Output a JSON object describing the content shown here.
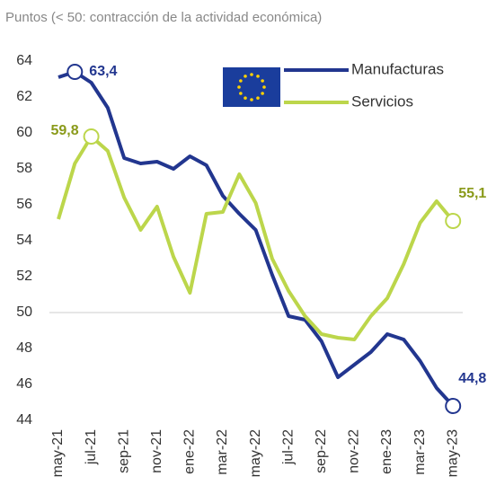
{
  "chart_data": {
    "type": "line",
    "subtitle": "Puntos (< 50: contracción de la actividad económica)",
    "categories": [
      "may-21",
      null,
      "jul-21",
      null,
      "sep-21",
      null,
      "nov-21",
      null,
      "ene-22",
      null,
      "mar-22",
      null,
      "may-22",
      null,
      "jul-22",
      null,
      "sep-22",
      null,
      "nov-22",
      null,
      "ene-23",
      null,
      "mar-23",
      null,
      "may-23"
    ],
    "series": [
      {
        "name": "Manufacturas",
        "color": "#22368f",
        "label_color": "#22368f",
        "values": [
          63.1,
          63.4,
          62.8,
          61.4,
          58.6,
          58.3,
          58.4,
          58.0,
          58.7,
          58.2,
          56.5,
          55.5,
          54.6,
          52.1,
          49.8,
          49.6,
          48.4,
          46.4,
          47.1,
          47.8,
          48.8,
          48.5,
          47.3,
          45.8,
          44.8
        ],
        "value_labels": [
          null,
          "63,4",
          null,
          null,
          null,
          null,
          null,
          null,
          null,
          null,
          null,
          null,
          null,
          null,
          null,
          null,
          null,
          null,
          null,
          null,
          null,
          null,
          null,
          null,
          "44,8"
        ]
      },
      {
        "name": "Servicios",
        "color": "#bcd64b",
        "label_color": "#8a9a1a",
        "values": [
          55.2,
          58.3,
          59.8,
          59.0,
          56.4,
          54.6,
          55.9,
          53.1,
          51.1,
          55.5,
          55.6,
          57.7,
          56.1,
          53.0,
          51.2,
          49.8,
          48.8,
          48.6,
          48.5,
          49.8,
          50.8,
          52.7,
          55.0,
          56.2,
          55.1
        ],
        "value_labels": [
          null,
          null,
          "59,8",
          null,
          null,
          null,
          null,
          null,
          null,
          null,
          null,
          null,
          null,
          null,
          null,
          null,
          null,
          null,
          null,
          null,
          null,
          null,
          null,
          null,
          "55,1"
        ]
      }
    ],
    "ylim": [
      44,
      64
    ],
    "yticks": [
      44,
      46,
      48,
      50,
      52,
      54,
      56,
      58,
      60,
      62,
      64
    ],
    "reference_line": 50,
    "legend": "top-right"
  }
}
